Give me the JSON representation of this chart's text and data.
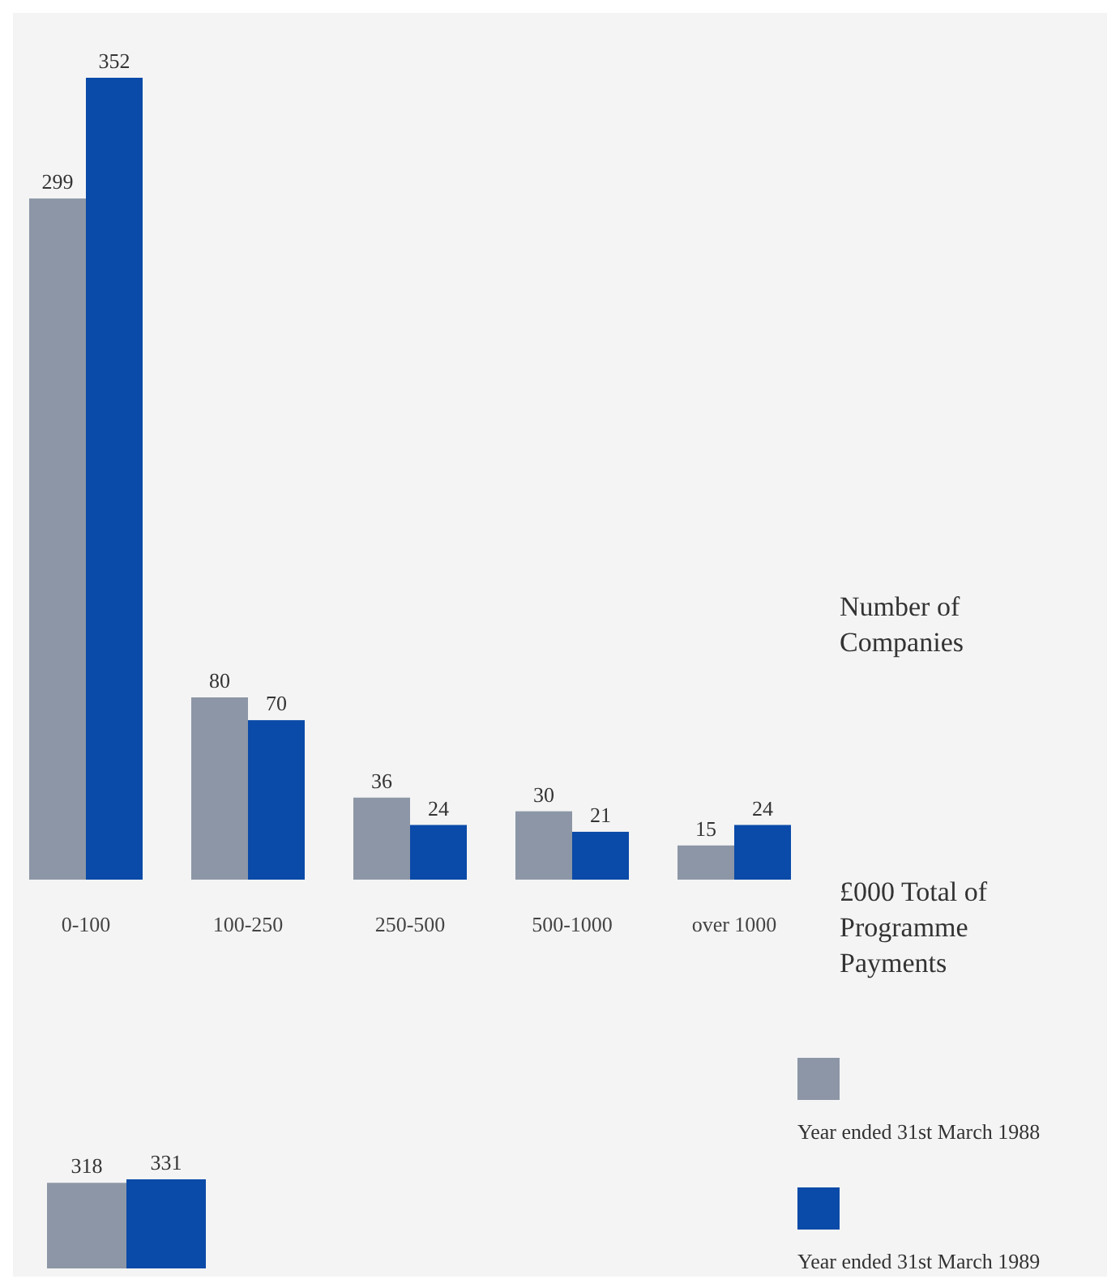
{
  "chart_data": [
    {
      "type": "bar",
      "categories": [
        "0-100",
        "100-250",
        "250-500",
        "500-1000",
        "over 1000"
      ],
      "ylabel": "Number of Companies",
      "xlabel": "£000 Total of Programme Payments",
      "data_labels": true,
      "legend": "right",
      "series": [
        {
          "name": "Year ended 31st March 1988",
          "color": "#8c96a6",
          "values": [
            299,
            80,
            36,
            30,
            15
          ]
        },
        {
          "name": "Year ended 31st March 1989",
          "color": "#0a4aa8",
          "values": [
            352,
            70,
            24,
            21,
            24
          ]
        }
      ]
    },
    {
      "type": "bar",
      "categories": [
        null
      ],
      "data_labels": true,
      "series": [
        {
          "color": "#8c96a6",
          "values": [
            318
          ]
        },
        {
          "color": "#0a4aa8",
          "values": [
            331
          ]
        }
      ]
    }
  ]
}
